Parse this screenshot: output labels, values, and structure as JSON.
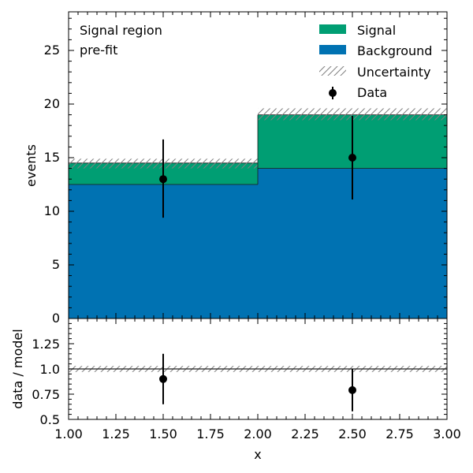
{
  "chart_data": [
    {
      "type": "bar",
      "panel": "main",
      "bin_edges": [
        1.0,
        2.0,
        3.0
      ],
      "series": [
        {
          "name": "Background",
          "values": [
            12.5,
            14.0
          ],
          "color": "#0072b2"
        },
        {
          "name": "Signal",
          "values": [
            2.0,
            5.0
          ],
          "color": "#009e73"
        }
      ],
      "uncertainty": {
        "label": "Uncertainty",
        "low": [
          14.0,
          18.5
        ],
        "high": [
          14.9,
          19.6
        ]
      },
      "data_points": {
        "label": "Data",
        "x": [
          1.5,
          2.5
        ],
        "y": [
          13,
          15
        ],
        "yerr_low": [
          3.6,
          3.9
        ],
        "yerr_high": [
          3.7,
          3.9
        ]
      },
      "annotations": [
        "Signal region",
        "pre-fit"
      ],
      "ylabel": "events",
      "ylim": [
        0,
        28.5
      ],
      "yticks": [
        "0",
        "5",
        "10",
        "15",
        "20",
        "25"
      ],
      "legend_position": "top-right"
    },
    {
      "type": "scatter",
      "panel": "ratio",
      "x": [
        1.5,
        2.5
      ],
      "y": [
        0.9,
        0.79
      ],
      "yerr_low": [
        0.25,
        0.21
      ],
      "yerr_high": [
        0.25,
        0.21
      ],
      "reference_line": 1.0,
      "uncertainty_band": [
        0.97,
        1.03
      ],
      "xlabel": "x",
      "ylabel": "data / model",
      "xlim": [
        1.0,
        3.0
      ],
      "ylim": [
        0.5,
        1.5
      ],
      "xticks": [
        "1.00",
        "1.25",
        "1.50",
        "1.75",
        "2.00",
        "2.25",
        "2.50",
        "2.75",
        "3.00"
      ],
      "yticks": [
        "0.5",
        "0.75",
        "1.0",
        "1.25"
      ]
    }
  ],
  "colors": {
    "signal": "#009e73",
    "background": "#0072b2",
    "data": "#000000",
    "hatch": "#808080"
  }
}
